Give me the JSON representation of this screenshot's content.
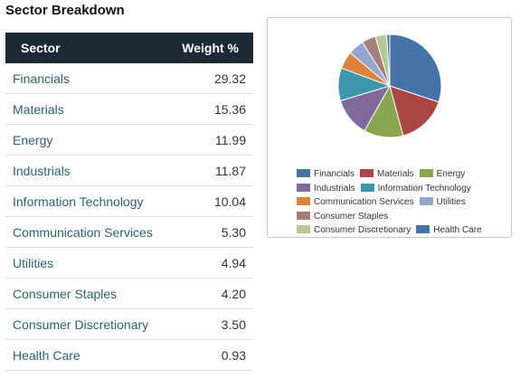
{
  "title": "Sector Breakdown",
  "table": {
    "headers": {
      "sector": "Sector",
      "weight": "Weight %"
    },
    "rows": [
      {
        "sector": "Financials",
        "weight": "29.32"
      },
      {
        "sector": "Materials",
        "weight": "15.36"
      },
      {
        "sector": "Energy",
        "weight": "11.99"
      },
      {
        "sector": "Industrials",
        "weight": "11.87"
      },
      {
        "sector": "Information Technology",
        "weight": "10.04"
      },
      {
        "sector": "Communication Services",
        "weight": "5.30"
      },
      {
        "sector": "Utilities",
        "weight": "4.94"
      },
      {
        "sector": "Consumer Staples",
        "weight": "4.20"
      },
      {
        "sector": "Consumer Discretionary",
        "weight": "3.50"
      },
      {
        "sector": "Health Care",
        "weight": "0.93"
      }
    ]
  },
  "chart_data": {
    "type": "pie",
    "categories": [
      "Financials",
      "Materials",
      "Energy",
      "Industrials",
      "Information Technology",
      "Communication Services",
      "Utilities",
      "Consumer Staples",
      "Consumer Discretionary",
      "Health Care"
    ],
    "values": [
      29.32,
      15.36,
      11.99,
      11.87,
      10.04,
      5.3,
      4.94,
      4.2,
      3.5,
      0.93
    ],
    "colors": [
      "#4572a7",
      "#aa4643",
      "#89a54e",
      "#80699b",
      "#3d96ae",
      "#db843d",
      "#92a8cd",
      "#a47d7c",
      "#b5ca92",
      "#4572a7"
    ],
    "legend_position": "bottom"
  }
}
